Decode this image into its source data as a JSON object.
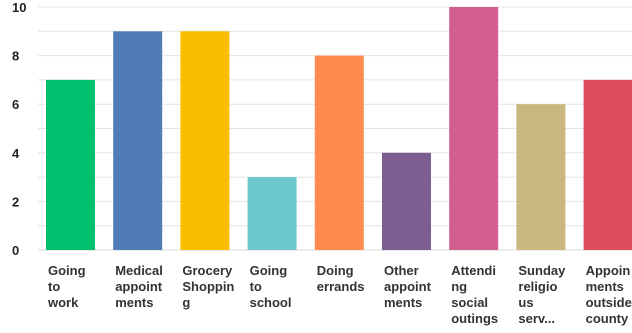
{
  "chart_data": {
    "type": "bar",
    "categories": [
      [
        "Going",
        "to",
        "work"
      ],
      [
        "Medical",
        "appoint",
        "ments"
      ],
      [
        "Grocery",
        "Shoppin",
        "g"
      ],
      [
        "Going",
        "to",
        "school"
      ],
      [
        "Doing",
        "errands"
      ],
      [
        "Other",
        "appoint",
        "ments"
      ],
      [
        "Attendi",
        "ng",
        "social",
        "outings"
      ],
      [
        "Sunday",
        "religio",
        "us",
        "serv..."
      ],
      [
        "Appoin",
        "ments",
        "outside",
        "county"
      ]
    ],
    "values": [
      7,
      9,
      9,
      3,
      8,
      4,
      10,
      6,
      7
    ],
    "colors": [
      "#00bf6f",
      "#507cb6",
      "#f9be00",
      "#6bc8cd",
      "#ff8b4f",
      "#7d5e90",
      "#d25f90",
      "#c9b77d",
      "#de4c5e"
    ],
    "ylim": [
      0,
      10
    ],
    "yticks": [
      0,
      2,
      4,
      6,
      8,
      10
    ],
    "grid": true,
    "title": "",
    "xlabel": "",
    "ylabel": ""
  }
}
